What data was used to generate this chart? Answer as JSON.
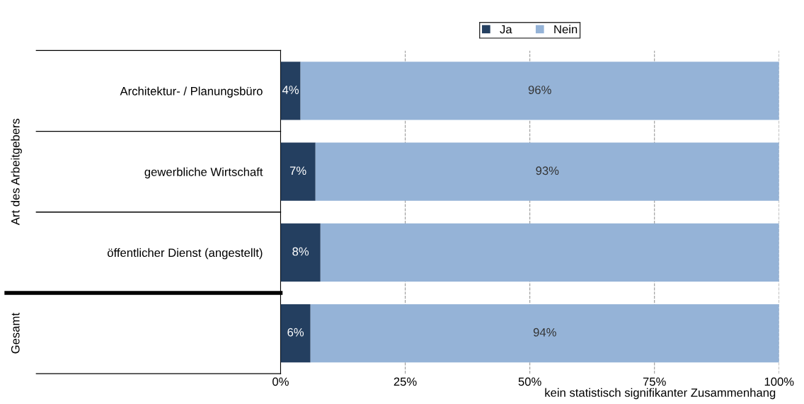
{
  "chart_data": {
    "type": "bar",
    "orientation": "horizontal",
    "stacked": true,
    "categories": [
      "Architektur- / Planungsbüro",
      "gewerbliche Wirtschaft",
      "öffentlicher Dienst (angestellt)",
      null
    ],
    "series": [
      {
        "name": "Ja",
        "color": "#243f60",
        "values": [
          4,
          7,
          8,
          6
        ],
        "value_labels": [
          "4%",
          "7%",
          "8%",
          "6%"
        ]
      },
      {
        "name": "Nein",
        "color": "#95b3d7",
        "values": [
          96,
          93,
          92,
          94
        ],
        "value_labels": [
          "96%",
          "93%",
          null,
          "94%"
        ]
      }
    ],
    "xlim": [
      0,
      100
    ],
    "xticks": [
      {
        "value": 0,
        "label": "0%"
      },
      {
        "value": 25,
        "label": "25%"
      },
      {
        "value": 50,
        "label": "50%"
      },
      {
        "value": 75,
        "label": "75%"
      },
      {
        "value": 100,
        "label": "100%"
      }
    ],
    "grid": "x",
    "legend": "top",
    "annotations": [
      "Art des Arbeitgebers",
      "Gesamt",
      "kein statistisch signifikanter Zusammenhang"
    ]
  }
}
